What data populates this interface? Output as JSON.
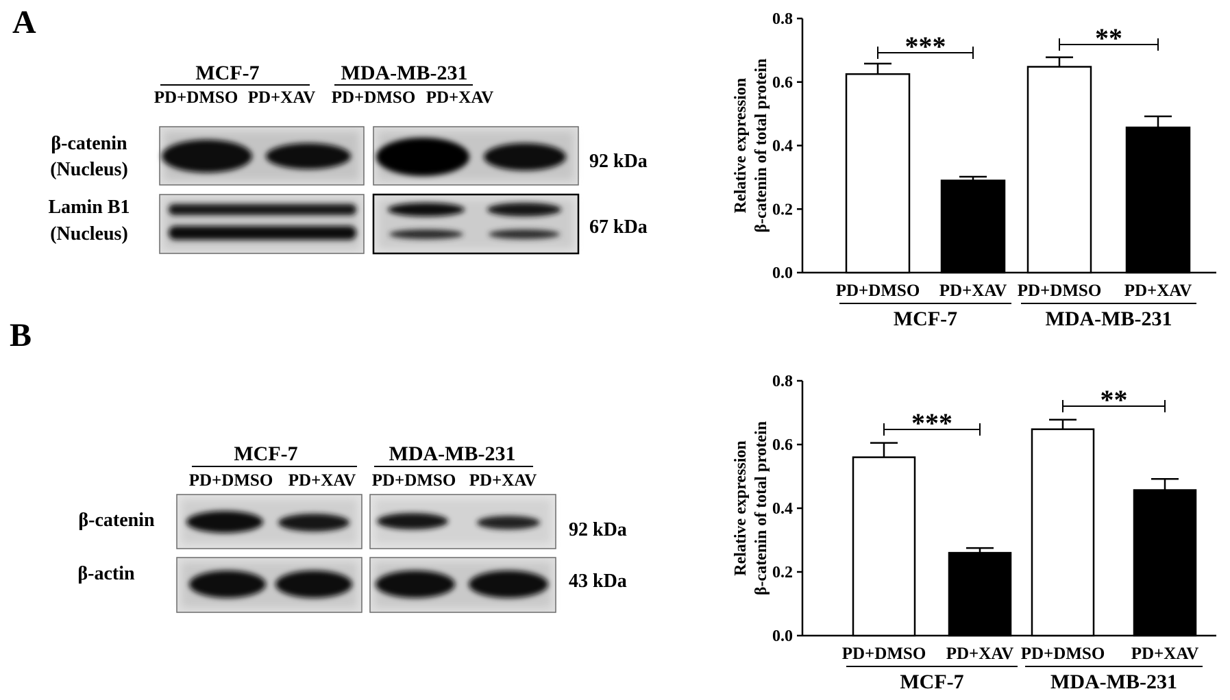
{
  "panels": [
    {
      "label": "A",
      "blot": {
        "groups": [
          {
            "name": "MCF-7",
            "lanes": [
              "PD+DMSO",
              "PD+XAV"
            ]
          },
          {
            "name": "MDA-MB-231",
            "lanes": [
              "PD+DMSO",
              "PD+XAV"
            ]
          }
        ],
        "rows": [
          {
            "label_lines": [
              "β-catenin",
              "(Nucleus)"
            ],
            "kda": "92 kDa",
            "bands": 1
          },
          {
            "label_lines": [
              "Lamin B1",
              "(Nucleus)"
            ],
            "kda": "67 kDa",
            "bands": 2
          }
        ]
      }
    },
    {
      "label": "B",
      "blot": {
        "groups": [
          {
            "name": "MCF-7",
            "lanes": [
              "PD+DMSO",
              "PD+XAV"
            ]
          },
          {
            "name": "MDA-MB-231",
            "lanes": [
              "PD+DMSO",
              "PD+XAV"
            ]
          }
        ],
        "rows": [
          {
            "label_lines": [
              "β-catenin"
            ],
            "kda": "92 kDa",
            "bands": 1
          },
          {
            "label_lines": [
              "β-actin"
            ],
            "kda": "43 kDa",
            "bands": 1
          }
        ]
      }
    }
  ],
  "chart_data": [
    {
      "type": "bar",
      "panel": "A",
      "ylabel_lines": [
        "Relative expression",
        "β-catenin of total protein"
      ],
      "ylim": [
        0,
        0.8
      ],
      "yticks": [
        "0.0",
        "0.2",
        "0.4",
        "0.6",
        "0.8"
      ],
      "groups": [
        "MCF-7",
        "MDA-MB-231"
      ],
      "categories": [
        "PD+DMSO",
        "PD+XAV",
        "PD+DMSO",
        "PD+XAV"
      ],
      "values": [
        0.625,
        0.29,
        0.648,
        0.457
      ],
      "errors": [
        0.033,
        0.012,
        0.03,
        0.035
      ],
      "fills": [
        "#ffffff",
        "#000000",
        "#ffffff",
        "#000000"
      ],
      "significance": [
        "***",
        "**"
      ]
    },
    {
      "type": "bar",
      "panel": "B",
      "ylabel_lines": [
        "Relative expression",
        "β-catenin of total protein"
      ],
      "ylim": [
        0,
        0.8
      ],
      "yticks": [
        "0.0",
        "0.2",
        "0.4",
        "0.6",
        "0.8"
      ],
      "groups": [
        "MCF-7",
        "MDA-MB-231"
      ],
      "categories": [
        "PD+DMSO",
        "PD+XAV",
        "PD+DMSO",
        "PD+XAV"
      ],
      "values": [
        0.56,
        0.26,
        0.648,
        0.457
      ],
      "errors": [
        0.045,
        0.015,
        0.03,
        0.035
      ],
      "fills": [
        "#ffffff",
        "#000000",
        "#ffffff",
        "#000000"
      ],
      "significance": [
        "***",
        "**"
      ]
    }
  ]
}
